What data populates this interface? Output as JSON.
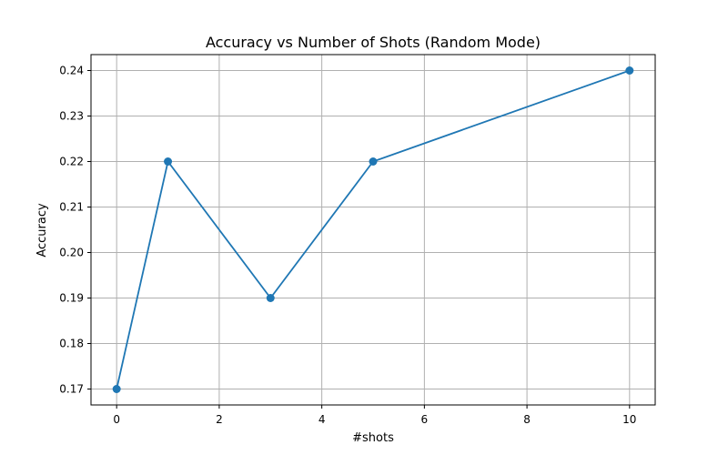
{
  "chart_data": {
    "type": "line",
    "title": "Accuracy vs Number of Shots (Random Mode)",
    "xlabel": "#shots",
    "ylabel": "Accuracy",
    "x": [
      0,
      1,
      3,
      5,
      10
    ],
    "series": [
      {
        "values": [
          0.17,
          0.22,
          0.19,
          0.22,
          0.24
        ],
        "color": "#1f77b4",
        "marker": "circle"
      }
    ],
    "xlim": [
      -0.5,
      10.5
    ],
    "ylim": [
      0.1665,
      0.2435
    ],
    "xticks": [
      0,
      2,
      4,
      6,
      8,
      10
    ],
    "xtick_labels": [
      "0",
      "2",
      "4",
      "6",
      "8",
      "10"
    ],
    "yticks": [
      0.17,
      0.18,
      0.19,
      0.2,
      0.21,
      0.22,
      0.23,
      0.24
    ],
    "ytick_labels": [
      "0.17",
      "0.18",
      "0.19",
      "0.20",
      "0.21",
      "0.22",
      "0.23",
      "0.24"
    ],
    "grid": true,
    "grid_color": "#b0b0b0"
  }
}
